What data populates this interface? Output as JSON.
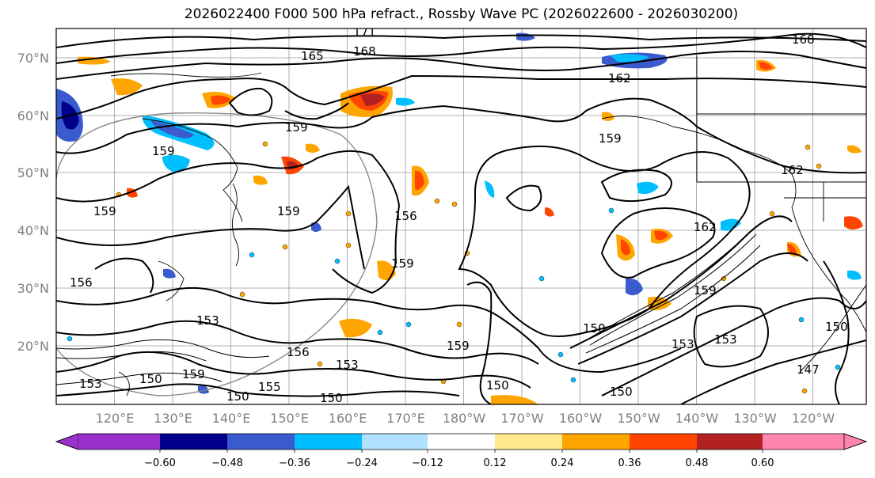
{
  "title": "2026022400 F000 500 hPa refract., Rossby Wave PC (2026022600 - 2026030200)",
  "lat_labels": [
    "70°N",
    "60°N",
    "50°N",
    "40°N",
    "30°N",
    "20°N"
  ],
  "lon_labels": [
    "120°E",
    "130°E",
    "140°E",
    "150°E",
    "160°E",
    "170°E",
    "180°W",
    "170°W",
    "160°W",
    "150°W",
    "140°W",
    "130°W",
    "120°W"
  ],
  "colorbar": {
    "ticks": [
      "−0.60",
      "−0.48",
      "−0.36",
      "−0.24",
      "−0.12",
      "0.12",
      "0.24",
      "0.36",
      "0.48",
      "0.60"
    ],
    "colors": [
      "#9932cc",
      "#00008b",
      "#3a5bcd",
      "#00bfff",
      "#b0e2ff",
      "#ffffff",
      "#ffe98a",
      "#ffa500",
      "#ff4500",
      "#b22222",
      "#ff85b0"
    ]
  },
  "contour_labels": [
    "171",
    "165",
    "168",
    "168",
    "162",
    "159",
    "159",
    "159",
    "156",
    "159",
    "159",
    "156",
    "153",
    "153",
    "156",
    "153",
    "150",
    "159",
    "159",
    "150",
    "155",
    "150",
    "150",
    "150",
    "162",
    "162",
    "159",
    "150",
    "153",
    "147",
    "150",
    "159",
    "153"
  ]
}
